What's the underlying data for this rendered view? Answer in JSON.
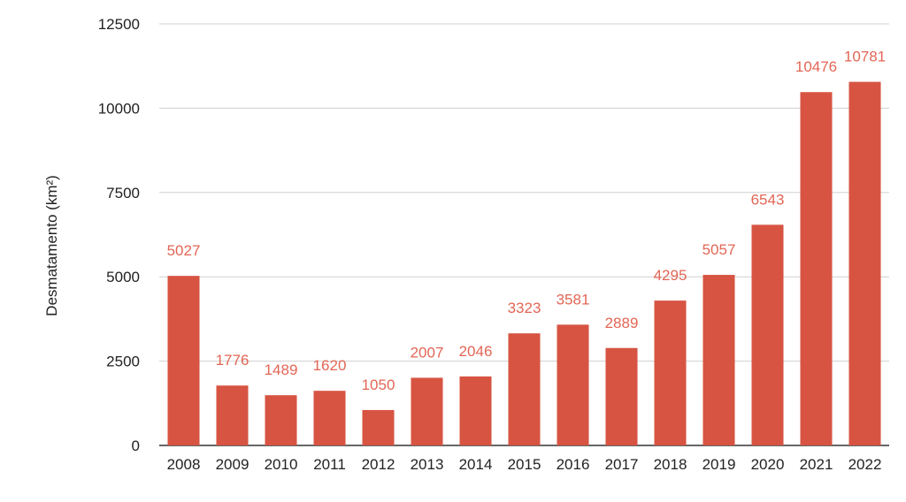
{
  "chart_data": {
    "type": "bar",
    "categories": [
      "2008",
      "2009",
      "2010",
      "2011",
      "2012",
      "2013",
      "2014",
      "2015",
      "2016",
      "2017",
      "2018",
      "2019",
      "2020",
      "2021",
      "2022"
    ],
    "values": [
      5027,
      1776,
      1489,
      1620,
      1050,
      2007,
      2046,
      3323,
      3581,
      2889,
      4295,
      5057,
      6543,
      10476,
      10781
    ],
    "title": "",
    "xlabel": "",
    "ylabel": "Desmatamento (km²)",
    "ylim": [
      0,
      12500
    ],
    "yticks": [
      0,
      2500,
      5000,
      7500,
      10000,
      12500
    ],
    "grid": true,
    "data_labels": true,
    "legend": "none",
    "colors": {
      "bar": "#d75442",
      "data_label": "#e26655",
      "grid": "#d0d0d0",
      "text": "#222222"
    }
  }
}
